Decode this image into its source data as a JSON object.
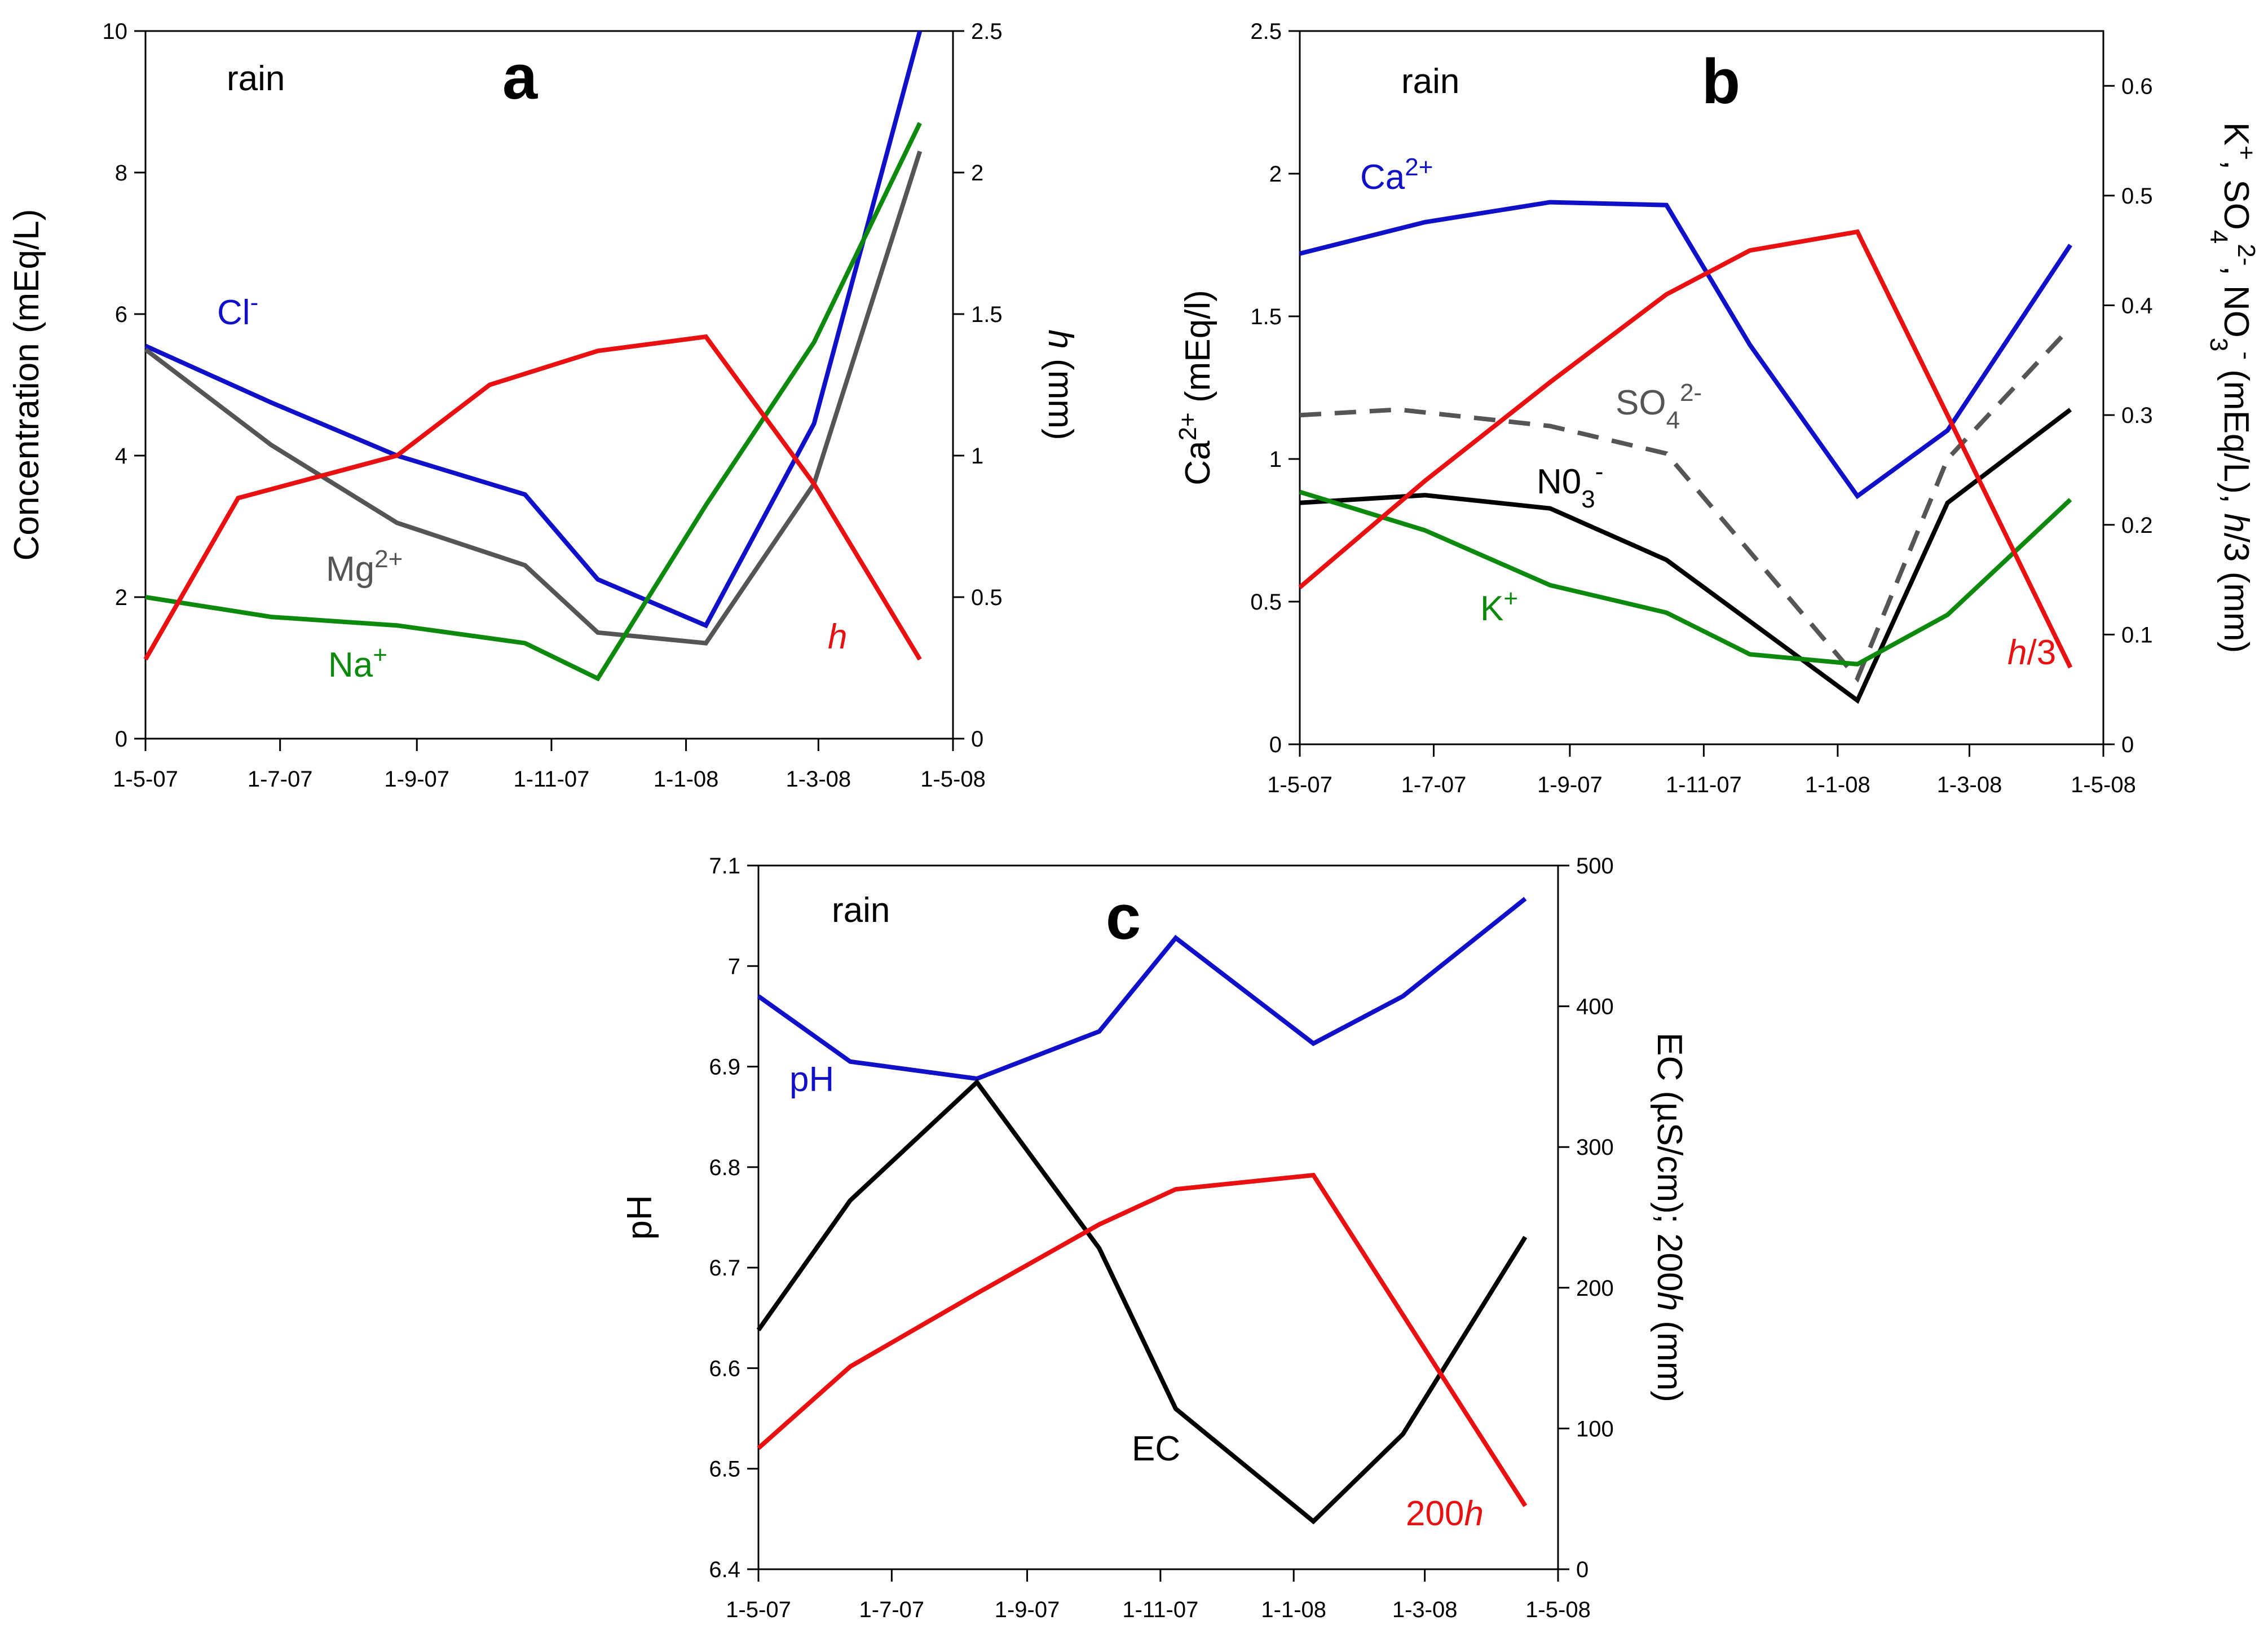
{
  "chart_data": [
    {
      "panel": "a",
      "type": "line",
      "x_labels": [
        "1-5-07",
        "1-7-07",
        "1-9-07",
        "1-11-07",
        "1-1-08",
        "1-3-08",
        "1-5-08"
      ],
      "xlim": [
        "1-5-07",
        "1-5-08"
      ],
      "left_axis": {
        "label": "Concentration (mEq/L)",
        "lim": [
          0,
          10
        ],
        "ticks": [
          0,
          2,
          4,
          6,
          8,
          10
        ]
      },
      "right_axis": {
        "label": "h (mm)",
        "label_italic_part": "h",
        "lim": [
          0,
          2.5
        ],
        "ticks": [
          "0",
          "0.5",
          "1",
          "1.5",
          "2",
          "2.5"
        ]
      },
      "annotations": {
        "rain": "rain",
        "panel_label": "a"
      },
      "series": [
        {
          "name": "Cl-",
          "label_main": "Cl",
          "label_sup": "-",
          "color": "#1010c8",
          "axis": "left",
          "points": [
            [
              "2007-05-01",
              5.55
            ],
            [
              "2007-06-27",
              4.75
            ],
            [
              "2007-08-23",
              4.0
            ],
            [
              "2007-10-20",
              3.45
            ],
            [
              "2007-11-22",
              2.25
            ],
            [
              "2008-01-10",
              1.6
            ],
            [
              "2008-02-28",
              4.45
            ],
            [
              "2008-04-16",
              10.0
            ]
          ]
        },
        {
          "name": "Mg2+",
          "label_main": "Mg",
          "label_sup": "2+",
          "color": "#555555",
          "axis": "left",
          "points": [
            [
              "2007-05-01",
              5.5
            ],
            [
              "2007-06-27",
              4.15
            ],
            [
              "2007-08-23",
              3.05
            ],
            [
              "2007-10-20",
              2.45
            ],
            [
              "2007-11-22",
              1.5
            ],
            [
              "2008-01-10",
              1.35
            ],
            [
              "2008-02-28",
              3.6
            ],
            [
              "2008-04-16",
              8.3
            ]
          ]
        },
        {
          "name": "Na+",
          "label_main": "Na",
          "label_sup": "+",
          "color": "#0d8a0d",
          "axis": "left",
          "points": [
            [
              "2007-05-01",
              2.0
            ],
            [
              "2007-06-27",
              1.72
            ],
            [
              "2007-08-23",
              1.6
            ],
            [
              "2007-10-20",
              1.35
            ],
            [
              "2007-11-22",
              0.85
            ],
            [
              "2008-01-10",
              3.3
            ],
            [
              "2008-02-28",
              5.6
            ],
            [
              "2008-04-16",
              8.7
            ]
          ]
        },
        {
          "name": "h",
          "label_main": "h",
          "label_sup": "",
          "color": "#e81010",
          "axis": "right",
          "points": [
            [
              "2007-05-01",
              0.28
            ],
            [
              "2007-06-12",
              0.85
            ],
            [
              "2007-08-23",
              1.0
            ],
            [
              "2007-10-04",
              1.25
            ],
            [
              "2007-11-22",
              1.37
            ],
            [
              "2008-01-10",
              1.42
            ],
            [
              "2008-02-28",
              0.9
            ],
            [
              "2008-04-16",
              0.28
            ]
          ]
        }
      ]
    },
    {
      "panel": "b",
      "type": "line",
      "x_labels": [
        "1-5-07",
        "1-7-07",
        "1-9-07",
        "1-11-07",
        "1-1-08",
        "1-3-08",
        "1-5-08"
      ],
      "xlim": [
        "1-5-07",
        "1-5-08"
      ],
      "left_axis": {
        "label": "Ca2+ (mEq/l)",
        "label_main": "Ca",
        "label_sup": "2+",
        "label_rest": " (mEq/l)",
        "lim": [
          0,
          2.5
        ],
        "ticks": [
          "0",
          "0.5",
          "1",
          "1.5",
          "2",
          "2.5"
        ]
      },
      "right_axis": {
        "label": "K+, SO42-, NO3- (mEq/L), h/3 (mm)",
        "lim": [
          0,
          0.65
        ],
        "ticks": [
          "0",
          "0.1",
          "0.2",
          "0.3",
          "0.4",
          "0.5",
          "0.6"
        ]
      },
      "annotations": {
        "rain": "rain",
        "panel_label": "b"
      },
      "series": [
        {
          "name": "Ca2+",
          "label_main": "Ca",
          "label_sup": "2+",
          "color": "#1010c8",
          "axis": "left",
          "dash": false,
          "points": [
            [
              "2007-05-01",
              1.72
            ],
            [
              "2007-06-27",
              1.83
            ],
            [
              "2007-08-23",
              1.9
            ],
            [
              "2007-10-15",
              1.89
            ],
            [
              "2007-11-22",
              1.4
            ],
            [
              "2008-01-10",
              0.87
            ],
            [
              "2008-02-20",
              1.1
            ],
            [
              "2008-04-16",
              1.75
            ]
          ]
        },
        {
          "name": "SO42-",
          "label_main": "SO",
          "label_sub": "4",
          "label_sup": "2-",
          "color": "#555555",
          "axis": "right",
          "dash": true,
          "points": [
            [
              "2007-05-01",
              0.3
            ],
            [
              "2007-06-15",
              0.305
            ],
            [
              "2007-08-23",
              0.29
            ],
            [
              "2007-10-15",
              0.265
            ],
            [
              "2008-01-10",
              0.06
            ],
            [
              "2008-02-20",
              0.26
            ],
            [
              "2008-04-16",
              0.38
            ]
          ]
        },
        {
          "name": "NO3-",
          "label_main": "N0",
          "label_sub": "3",
          "label_sup": "-",
          "color": "#000000",
          "axis": "right",
          "dash": false,
          "points": [
            [
              "2007-05-01",
              0.22
            ],
            [
              "2007-06-27",
              0.227
            ],
            [
              "2007-08-23",
              0.215
            ],
            [
              "2007-10-15",
              0.168
            ],
            [
              "2008-01-10",
              0.04
            ],
            [
              "2008-02-20",
              0.22
            ],
            [
              "2008-04-16",
              0.305
            ]
          ]
        },
        {
          "name": "K+",
          "label_main": "K",
          "label_sup": "+",
          "color": "#0d8a0d",
          "axis": "right",
          "dash": false,
          "points": [
            [
              "2007-05-01",
              0.23
            ],
            [
              "2007-06-27",
              0.195
            ],
            [
              "2007-08-23",
              0.145
            ],
            [
              "2007-10-15",
              0.12
            ],
            [
              "2007-11-22",
              0.082
            ],
            [
              "2008-01-10",
              0.073
            ],
            [
              "2008-02-20",
              0.118
            ],
            [
              "2008-04-16",
              0.223
            ]
          ]
        },
        {
          "name": "h/3",
          "label_main": "h",
          "label_rest": "/3",
          "color": "#e81010",
          "axis": "right",
          "dash": false,
          "points": [
            [
              "2007-05-01",
              0.143
            ],
            [
              "2007-06-27",
              0.24
            ],
            [
              "2007-08-23",
              0.33
            ],
            [
              "2007-10-15",
              0.41
            ],
            [
              "2007-11-22",
              0.45
            ],
            [
              "2008-01-10",
              0.467
            ],
            [
              "2008-02-20",
              0.3
            ],
            [
              "2008-04-16",
              0.07
            ]
          ]
        }
      ]
    },
    {
      "panel": "c",
      "type": "line",
      "x_labels": [
        "1-5-07",
        "1-7-07",
        "1-9-07",
        "1-11-07",
        "1-1-08",
        "1-3-08",
        "1-5-08"
      ],
      "xlim": [
        "1-5-07",
        "1-5-08"
      ],
      "left_axis": {
        "label": "pH",
        "lim": [
          6.4,
          7.1
        ],
        "ticks": [
          "6.4",
          "6.5",
          "6.6",
          "6.7",
          "6.8",
          "6.9",
          "7",
          "7.1"
        ]
      },
      "right_axis": {
        "label": "EC (µS/cm); 200h (mm)",
        "lim": [
          0,
          500
        ],
        "ticks": [
          "0",
          "100",
          "200",
          "300",
          "400",
          "500"
        ]
      },
      "annotations": {
        "rain": "rain",
        "panel_label": "c"
      },
      "series": [
        {
          "name": "pH",
          "label_main": "pH",
          "color": "#1010c8",
          "axis": "left",
          "width": 8,
          "points": [
            [
              "2007-05-01",
              6.97
            ],
            [
              "2007-06-12",
              6.905
            ],
            [
              "2007-08-09",
              6.888
            ],
            [
              "2007-10-04",
              6.935
            ],
            [
              "2007-11-08",
              7.028
            ],
            [
              "2008-01-10",
              6.923
            ],
            [
              "2008-02-20",
              6.97
            ],
            [
              "2008-04-16",
              7.067
            ]
          ]
        },
        {
          "name": "EC",
          "label_main": "EC",
          "color": "#000000",
          "axis": "right",
          "width": 8,
          "points": [
            [
              "2007-05-01",
              170
            ],
            [
              "2007-06-12",
              262
            ],
            [
              "2007-08-09",
              346
            ],
            [
              "2007-10-04",
              228
            ],
            [
              "2007-11-08",
              114
            ],
            [
              "2008-01-10",
              34
            ],
            [
              "2008-02-20",
              96
            ],
            [
              "2008-04-16",
              236
            ]
          ]
        },
        {
          "name": "200h",
          "label_main": "200",
          "label_rest": "h",
          "color": "#e81010",
          "axis": "right",
          "width": 5,
          "points": [
            [
              "2007-05-01",
              86
            ],
            [
              "2007-06-12",
              144
            ],
            [
              "2007-08-09",
              196
            ],
            [
              "2007-10-04",
              245
            ],
            [
              "2007-11-08",
              270
            ],
            [
              "2008-01-10",
              280
            ],
            [
              "2008-04-16",
              45
            ]
          ]
        }
      ]
    }
  ]
}
